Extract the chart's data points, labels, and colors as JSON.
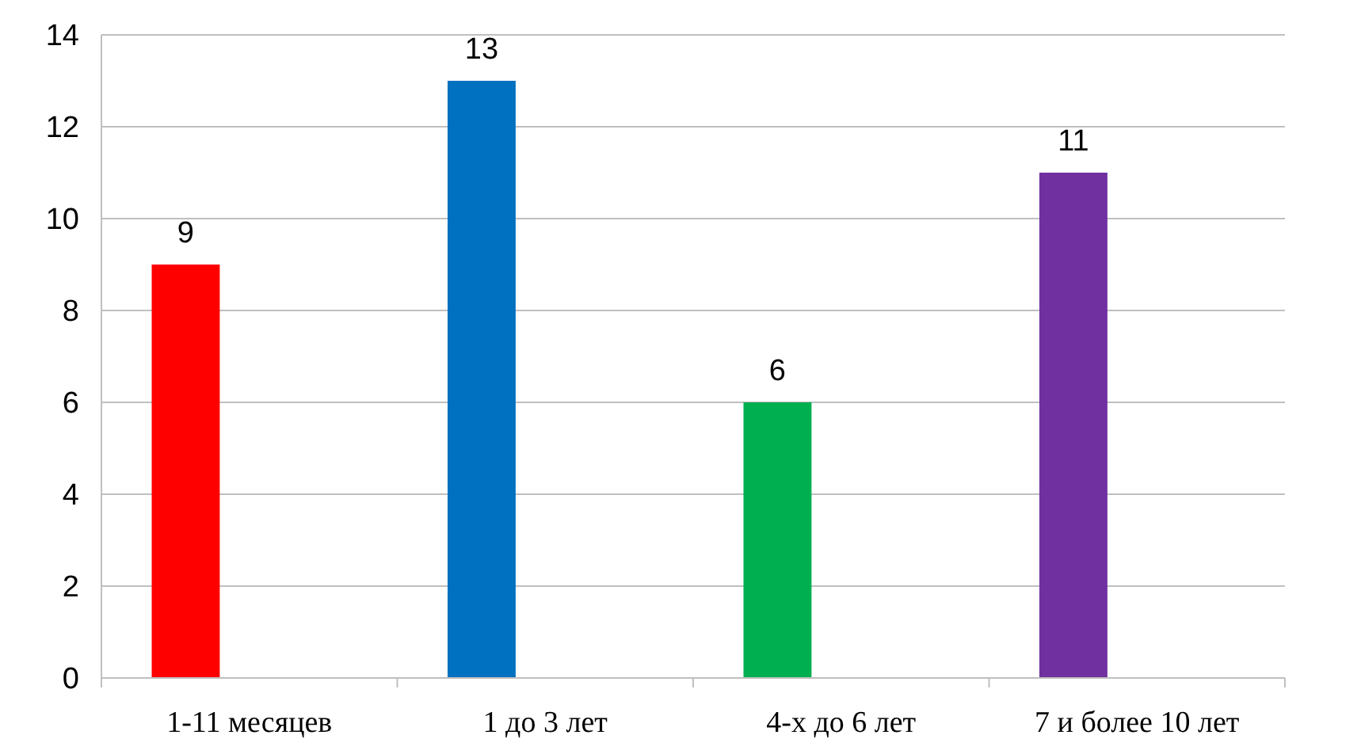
{
  "chart_data": {
    "type": "bar",
    "categories": [
      "1-11 месяцев",
      "1 до 3 лет",
      "4-х до 6 лет",
      "7 и более 10 лет"
    ],
    "values": [
      9,
      13,
      6,
      11
    ],
    "colors": [
      "#ff0000",
      "#0070c0",
      "#00b050",
      "#7030a0"
    ],
    "ylim": [
      0,
      14
    ],
    "yticks": [
      0,
      2,
      4,
      6,
      8,
      10,
      12,
      14
    ],
    "grid": "y",
    "data_labels": true
  }
}
